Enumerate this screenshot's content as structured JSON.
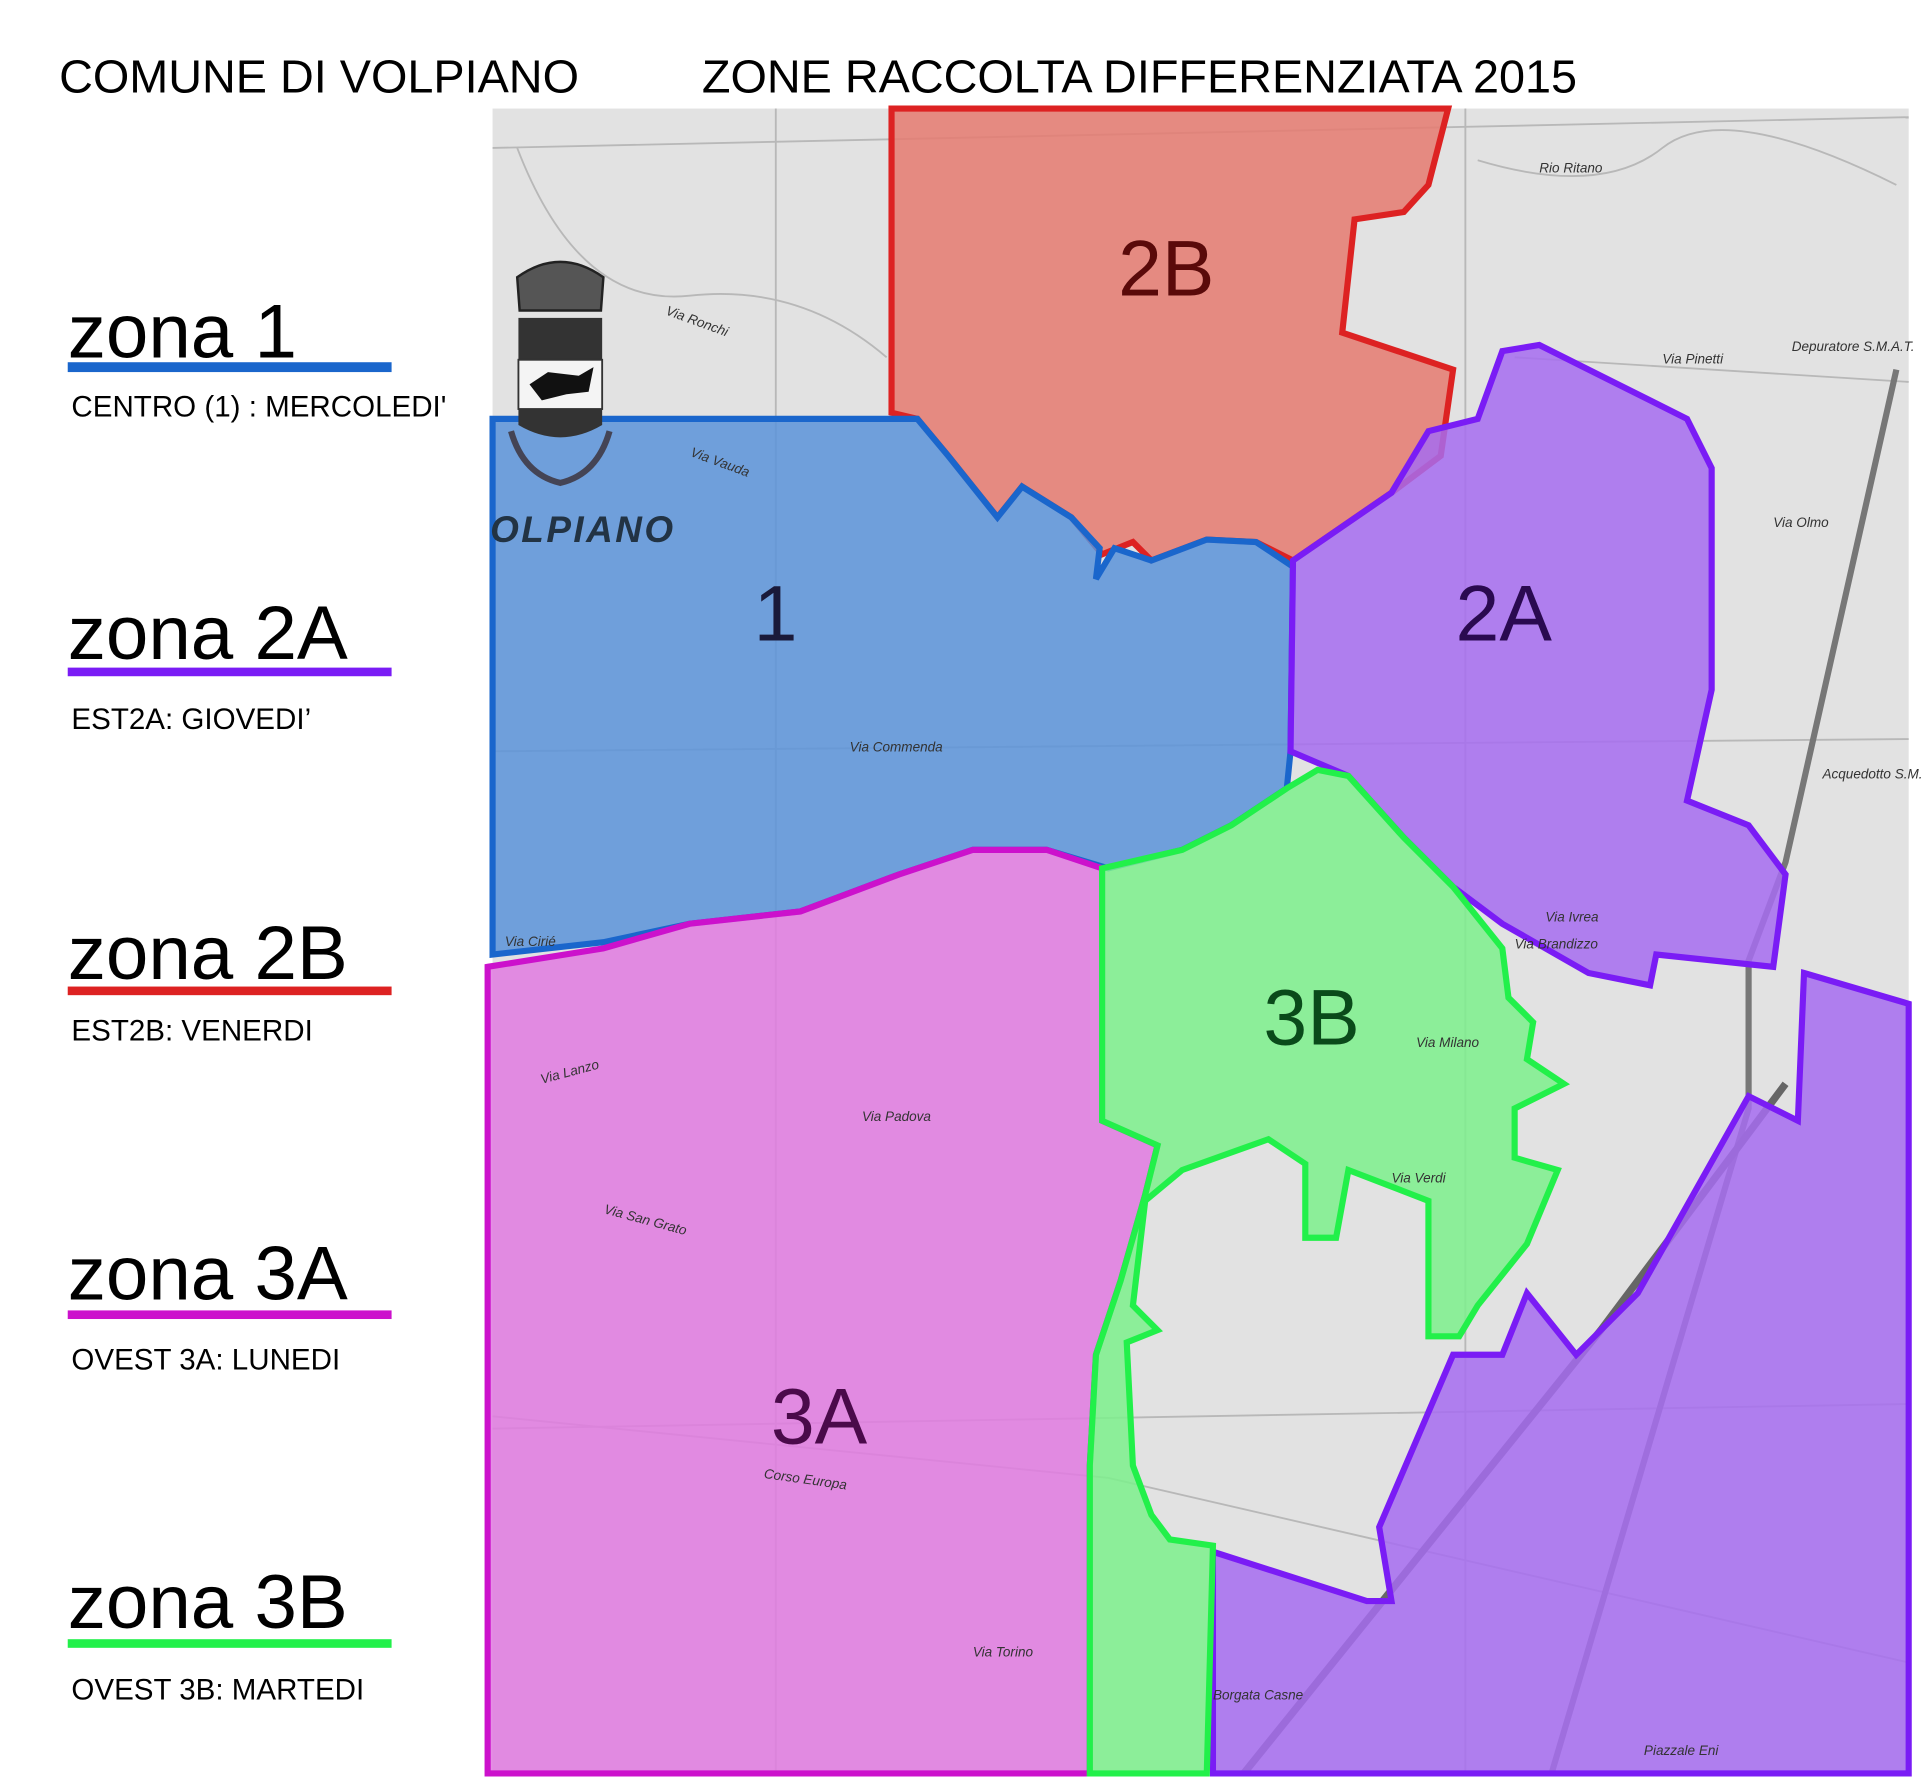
{
  "header": {
    "title_left": "COMUNE DI VOLPIANO",
    "title_right": "ZONE RACCOLTA DIFFERENZIATA 2015"
  },
  "legend": [
    {
      "label": "zona 1",
      "schedule": "CENTRO (1) : MERCOLEDI'",
      "color": "#1a66cc"
    },
    {
      "label": "zona 2A",
      "schedule": "EST2A: GIOVEDI’",
      "color": "#7a1cf5"
    },
    {
      "label": "zona 2B",
      "schedule": "EST2B: VENERDI",
      "color": "#dd2222"
    },
    {
      "label": "zona 3A",
      "schedule": "OVEST 3A: LUNEDI",
      "color": "#cc11cc"
    },
    {
      "label": "zona 3B",
      "schedule": "OVEST 3B: MARTEDI",
      "color": "#22f04a"
    }
  ],
  "map": {
    "town_name": "OLPIANO",
    "zones": [
      {
        "id": "1",
        "label": "1",
        "color": "#1a66cc",
        "fill": "#5b93d9"
      },
      {
        "id": "2A",
        "label": "2A",
        "color": "#7a1cf5",
        "fill": "#a66cf0"
      },
      {
        "id": "2B",
        "label": "2B",
        "color": "#dd2222",
        "fill": "#e57a70"
      },
      {
        "id": "3A",
        "label": "3A",
        "color": "#cc11cc",
        "fill": "#e07ae0"
      },
      {
        "id": "3B",
        "label": "3B",
        "color": "#22f04a",
        "fill": "#7cf08c"
      }
    ],
    "streets": [
      "Via Ronchi",
      "Rio Ritano",
      "Via Pinetti",
      "Via Olmo",
      "Via Vauda",
      "Via Commenda",
      "Via Cirié",
      "Via Lanzo",
      "Via Padova",
      "Via San Grato",
      "Via Verdi",
      "Corso Europa",
      "Via Torino",
      "Via Milano",
      "Via Ivrea",
      "Via Brandizzo",
      "Depuratore S.M.A.T.",
      "Acquedotto S.M.A.T.",
      "Piazzale Eni",
      "Borgata Casne"
    ]
  }
}
